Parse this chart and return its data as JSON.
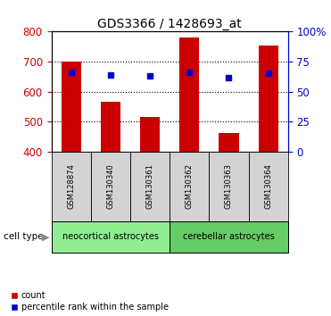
{
  "title": "GDS3366 / 1428693_at",
  "samples": [
    "GSM128874",
    "GSM130340",
    "GSM130361",
    "GSM130362",
    "GSM130363",
    "GSM130364"
  ],
  "counts": [
    700,
    565,
    515,
    780,
    463,
    755
  ],
  "percentile_ranks": [
    66,
    64,
    63,
    66,
    62,
    65
  ],
  "groups": [
    {
      "label": "neocortical astrocytes",
      "indices": [
        0,
        1,
        2
      ],
      "color": "#90EE90"
    },
    {
      "label": "cerebellar astrocytes",
      "indices": [
        3,
        4,
        5
      ],
      "color": "#66CC66"
    }
  ],
  "ylim_left": [
    400,
    800
  ],
  "ylim_right": [
    0,
    100
  ],
  "yticks_left": [
    400,
    500,
    600,
    700,
    800
  ],
  "yticks_right": [
    0,
    25,
    50,
    75,
    100
  ],
  "yticklabels_right": [
    "0",
    "25",
    "50",
    "75",
    "100%"
  ],
  "bar_color": "#cc0000",
  "dot_color": "#0000cc",
  "bar_width": 0.5,
  "background_color": "#ffffff",
  "plot_bg_color": "#ffffff",
  "tick_label_color_left": "#cc0000",
  "tick_label_color_right": "#0000cc",
  "cell_type_label": "cell type",
  "legend_count_label": "count",
  "legend_pct_label": "percentile rank within the sample",
  "sample_box_color": "#d3d3d3",
  "figsize": [
    3.71,
    3.54
  ],
  "dpi": 100
}
